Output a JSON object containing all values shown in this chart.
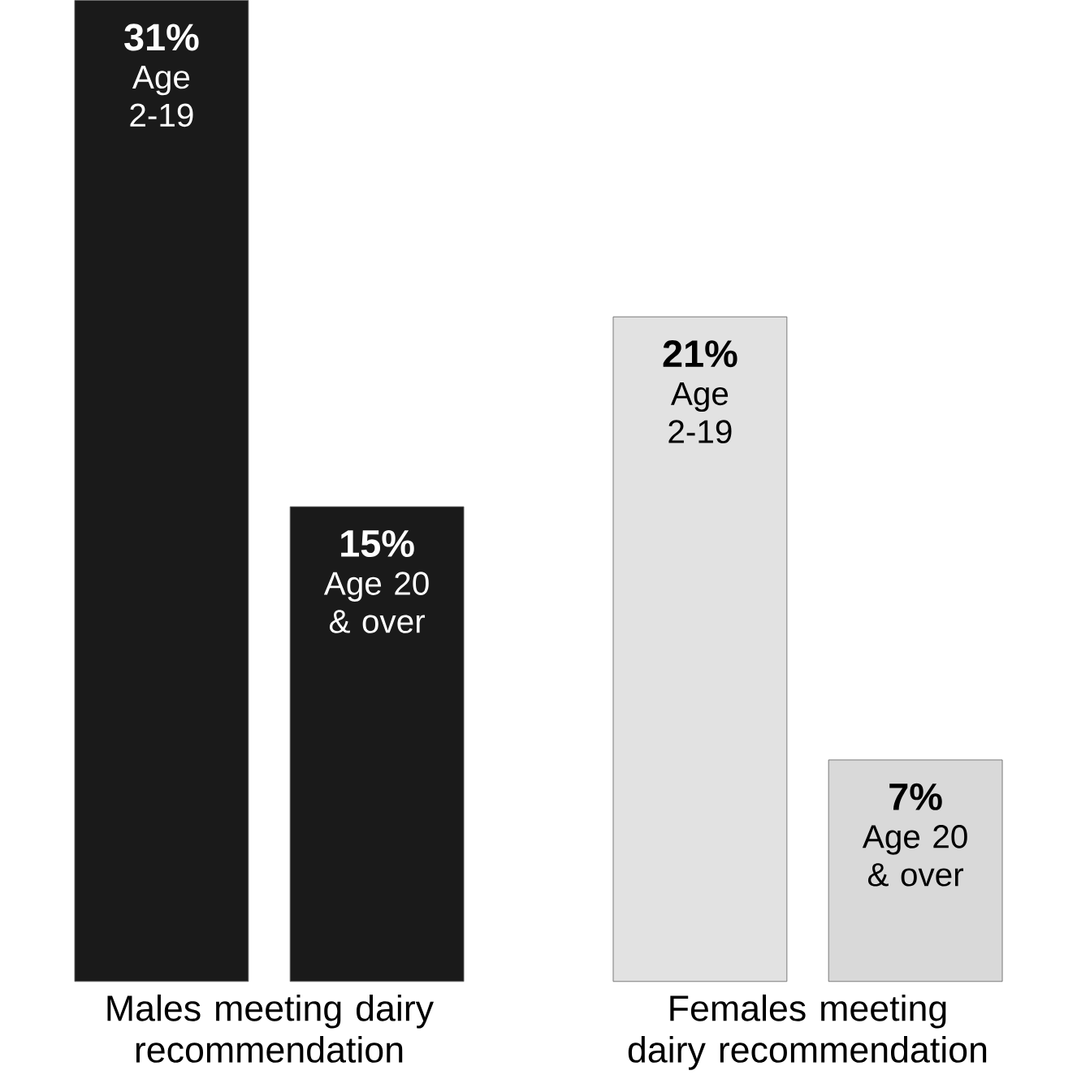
{
  "chart_data": {
    "type": "bar",
    "categories": [
      "Males meeting dairy recommendation",
      "Females meeting dairy recommendation"
    ],
    "series": [
      {
        "name": "Age 2-19",
        "colors": [
          "#1a1a1a",
          "#e2e2e2"
        ],
        "values": [
          31,
          21
        ],
        "value_labels": [
          "31%",
          "21%"
        ]
      },
      {
        "name": "Age 20 & over",
        "colors": [
          "#1a1a1a",
          "#d9d9d9"
        ],
        "values": [
          15,
          7
        ],
        "value_labels": [
          "15%",
          "7%"
        ]
      }
    ]
  }
}
